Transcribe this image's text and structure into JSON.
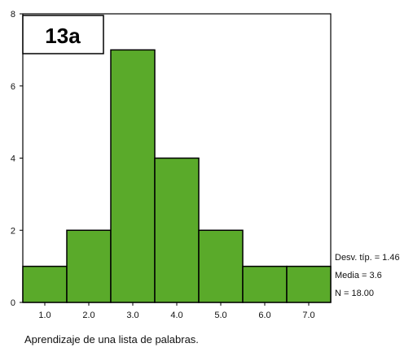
{
  "chart_data": {
    "type": "bar",
    "title": "13a",
    "xlabel": "Aprendizaje de una lista de palabras.",
    "ylabel": "",
    "categories": [
      "1.0",
      "2.0",
      "3.0",
      "4.0",
      "5.0",
      "6.0",
      "7.0"
    ],
    "bins": [
      {
        "from": 0.5,
        "to": 1.5,
        "value": 1
      },
      {
        "from": 1.5,
        "to": 2.5,
        "value": 2
      },
      {
        "from": 2.5,
        "to": 3.5,
        "value": 7
      },
      {
        "from": 3.5,
        "to": 4.5,
        "value": 4
      },
      {
        "from": 4.5,
        "to": 5.5,
        "value": 2
      },
      {
        "from": 5.5,
        "to": 6.5,
        "value": 1
      },
      {
        "from": 6.5,
        "to": 7.5,
        "value": 1
      }
    ],
    "xlim": [
      0.5,
      7.5
    ],
    "ylim": [
      0,
      8
    ],
    "yticks": [
      "0",
      "2",
      "4",
      "6",
      "8"
    ],
    "grid": false,
    "bar_color": "#5aaa2a",
    "stats": [
      "Desv. típ. = 1.46",
      "Media = 3.6",
      "N = 18.00"
    ]
  }
}
